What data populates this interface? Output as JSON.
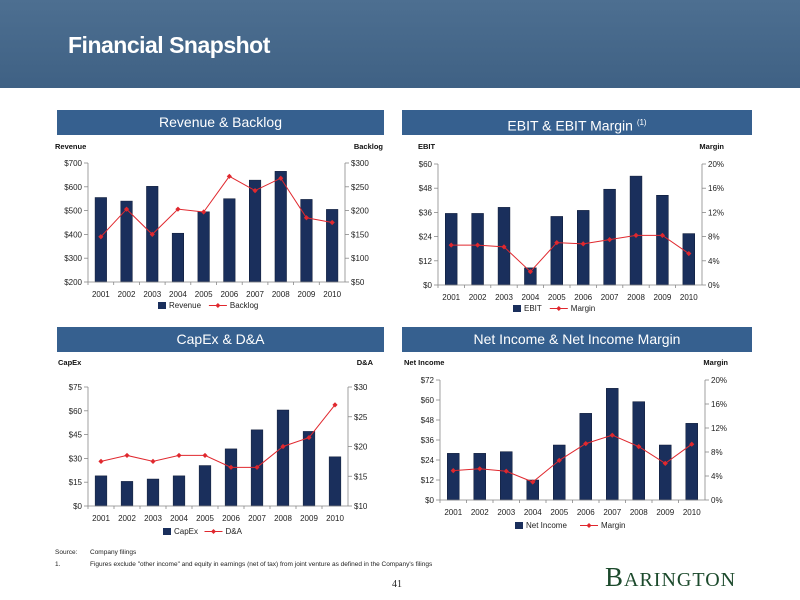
{
  "page": {
    "title": "Financial Snapshot",
    "page_number": "41",
    "logo_text": "Barington",
    "logo_initial": "B",
    "logo_rest": "ARINGTON",
    "footnotes": {
      "source_label": "Source:",
      "source_text": "Company filings",
      "note_number": "1.",
      "note_text": "Figures exclude \"other income\" and equity in earnings (net of tax) from joint venture as defined in the Company's filings"
    }
  },
  "colors": {
    "bar": "#1a2f5c",
    "line": "#e0282e",
    "header_band": "#456787",
    "panel_header": "#36608f"
  },
  "chart_data": [
    {
      "type": "bar+line",
      "title": "Revenue & Backlog",
      "left_axis_label": "Revenue",
      "right_axis_label": "Backlog",
      "categories": [
        "2001",
        "2002",
        "2003",
        "2004",
        "2005",
        "2006",
        "2007",
        "2008",
        "2009",
        "2010"
      ],
      "left_range": [
        200,
        700
      ],
      "right_range": [
        50,
        300
      ],
      "left_ticks": [
        "$200",
        "$300",
        "$400",
        "$500",
        "$600",
        "$700"
      ],
      "right_ticks": [
        "$50",
        "$100",
        "$150",
        "$200",
        "$250",
        "$300"
      ],
      "series": [
        {
          "name": "Revenue",
          "axis": "left",
          "kind": "bar",
          "values": [
            555,
            540,
            602,
            405,
            495,
            550,
            628,
            665,
            547,
            505
          ]
        },
        {
          "name": "Backlog",
          "axis": "right",
          "kind": "line",
          "values": [
            145,
            203,
            150,
            203,
            197,
            272,
            242,
            268,
            185,
            175
          ]
        }
      ],
      "legend": [
        "Revenue",
        "Backlog"
      ]
    },
    {
      "type": "bar+line",
      "title": "EBIT & EBIT Margin",
      "title_note": "(1)",
      "left_axis_label": "EBIT",
      "right_axis_label": "Margin",
      "categories": [
        "2001",
        "2002",
        "2003",
        "2004",
        "2005",
        "2006",
        "2007",
        "2008",
        "2009",
        "2010"
      ],
      "left_range": [
        0,
        60
      ],
      "right_range": [
        0,
        20
      ],
      "left_ticks": [
        "$0",
        "$12",
        "$24",
        "$36",
        "$48",
        "$60"
      ],
      "right_ticks": [
        "0%",
        "4%",
        "8%",
        "12%",
        "16%",
        "20%"
      ],
      "series": [
        {
          "name": "EBIT",
          "axis": "left",
          "kind": "bar",
          "values": [
            35.5,
            35.5,
            38.5,
            8.5,
            34,
            37,
            47.5,
            54,
            44.5,
            25.5
          ]
        },
        {
          "name": "Margin",
          "axis": "right",
          "kind": "line",
          "values": [
            6.6,
            6.6,
            6.3,
            2.2,
            7.0,
            6.8,
            7.5,
            8.2,
            8.2,
            5.2
          ]
        }
      ],
      "legend": [
        "EBIT",
        "Margin"
      ]
    },
    {
      "type": "bar+line",
      "title": "CapEx & D&A",
      "left_axis_label": "CapEx",
      "right_axis_label": "D&A",
      "categories": [
        "2001",
        "2002",
        "2003",
        "2004",
        "2005",
        "2006",
        "2007",
        "2008",
        "2009",
        "2010"
      ],
      "left_range": [
        0,
        75
      ],
      "right_range": [
        10,
        30
      ],
      "left_ticks": [
        "$0",
        "$15",
        "$30",
        "$45",
        "$60",
        "$75"
      ],
      "right_ticks": [
        "$10",
        "$15",
        "$20",
        "$25",
        "$30"
      ],
      "series": [
        {
          "name": "CapEx",
          "axis": "left",
          "kind": "bar",
          "values": [
            19,
            15.5,
            17,
            19,
            25.5,
            36,
            48,
            60.5,
            47,
            31
          ]
        },
        {
          "name": "D&A",
          "axis": "right",
          "kind": "line",
          "values": [
            17.5,
            18.5,
            17.5,
            18.5,
            18.5,
            16.5,
            16.5,
            20,
            21.5,
            27
          ]
        }
      ],
      "legend": [
        "CapEx",
        "D&A"
      ]
    },
    {
      "type": "bar+line",
      "title": "Net Income & Net Income Margin",
      "left_axis_label": "Net Income",
      "right_axis_label": "Margin",
      "categories": [
        "2001",
        "2002",
        "2003",
        "2004",
        "2005",
        "2006",
        "2007",
        "2008",
        "2009",
        "2010"
      ],
      "left_range": [
        0,
        72
      ],
      "right_range": [
        0,
        20
      ],
      "left_ticks": [
        "$0",
        "$12",
        "$24",
        "$36",
        "$48",
        "$60",
        "$72"
      ],
      "right_ticks": [
        "0%",
        "4%",
        "8%",
        "12%",
        "16%",
        "20%"
      ],
      "series": [
        {
          "name": "Net Income",
          "axis": "left",
          "kind": "bar",
          "values": [
            28,
            28,
            29,
            12,
            33,
            52,
            67,
            59,
            33,
            46
          ]
        },
        {
          "name": "Margin",
          "axis": "right",
          "kind": "line",
          "values": [
            4.9,
            5.2,
            4.8,
            3.0,
            6.6,
            9.4,
            10.8,
            8.9,
            6.1,
            9.3
          ]
        }
      ],
      "legend": [
        "Net Income",
        "Margin"
      ]
    }
  ]
}
